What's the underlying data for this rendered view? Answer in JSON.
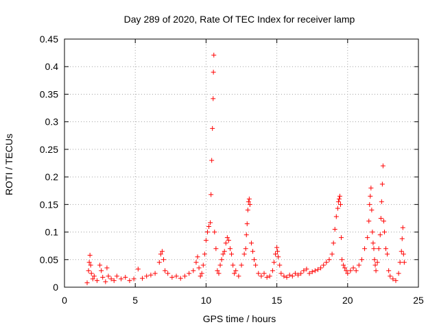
{
  "chart_data": {
    "type": "scatter",
    "title": "Day 289 of 2020, Rate Of TEC Index for receiver lamp",
    "xlabel": "GPS time / hours",
    "ylabel": "ROTI / TECUs",
    "xlim": [
      0,
      25
    ],
    "ylim": [
      0,
      0.45
    ],
    "xticks": [
      0,
      5,
      10,
      15,
      20,
      25
    ],
    "xtick_labels": [
      "0",
      "5",
      "10",
      "15",
      "20",
      "25"
    ],
    "yticks": [
      0,
      0.05,
      0.1,
      0.15,
      0.2,
      0.25,
      0.3,
      0.35,
      0.4,
      0.45
    ],
    "ytick_labels": [
      "0",
      "0.05",
      "0.1",
      "0.15",
      "0.2",
      "0.25",
      "0.3",
      "0.35",
      "0.4",
      "0.45"
    ],
    "grid": true,
    "marker": "+",
    "color": "#ff0000",
    "series": [
      {
        "name": "ROTI",
        "x": [
          1.6,
          1.7,
          1.75,
          1.8,
          1.85,
          1.9,
          2.0,
          2.1,
          2.3,
          2.5,
          2.6,
          2.7,
          2.9,
          3.0,
          3.1,
          3.3,
          3.5,
          3.7,
          4.0,
          4.3,
          4.6,
          4.9,
          5.2,
          5.5,
          5.8,
          6.1,
          6.4,
          6.7,
          6.8,
          6.9,
          7.0,
          7.1,
          7.3,
          7.6,
          7.9,
          8.2,
          8.5,
          8.8,
          9.1,
          9.3,
          9.4,
          9.5,
          9.6,
          9.7,
          9.8,
          9.9,
          10.0,
          10.1,
          10.2,
          10.3,
          10.35,
          10.4,
          10.45,
          10.5,
          10.52,
          10.55,
          10.6,
          10.7,
          10.8,
          10.9,
          11.0,
          11.1,
          11.2,
          11.3,
          11.4,
          11.5,
          11.6,
          11.7,
          11.8,
          11.9,
          12.0,
          12.1,
          12.3,
          12.5,
          12.7,
          12.8,
          12.85,
          12.9,
          12.95,
          13.0,
          13.05,
          13.1,
          13.2,
          13.3,
          13.4,
          13.5,
          13.7,
          13.9,
          14.1,
          14.3,
          14.5,
          14.7,
          14.8,
          14.9,
          15.0,
          15.05,
          15.1,
          15.2,
          15.3,
          15.5,
          15.7,
          15.9,
          16.1,
          16.3,
          16.5,
          16.7,
          16.9,
          17.1,
          17.3,
          17.5,
          17.7,
          17.9,
          18.1,
          18.3,
          18.5,
          18.7,
          18.9,
          19.0,
          19.1,
          19.2,
          19.3,
          19.35,
          19.4,
          19.45,
          19.5,
          19.55,
          19.6,
          19.7,
          19.8,
          19.9,
          20.0,
          20.2,
          20.4,
          20.6,
          20.8,
          21.0,
          21.2,
          21.4,
          21.5,
          21.55,
          21.6,
          21.65,
          21.7,
          21.75,
          21.8,
          21.85,
          21.9,
          21.95,
          22.0,
          22.1,
          22.2,
          22.3,
          22.35,
          22.4,
          22.45,
          22.5,
          22.55,
          22.6,
          22.7,
          22.8,
          22.9,
          23.0,
          23.2,
          23.4,
          23.6,
          23.7,
          23.8,
          23.85,
          23.9,
          23.95,
          24.0
        ],
        "y": [
          0.008,
          0.03,
          0.045,
          0.058,
          0.04,
          0.025,
          0.015,
          0.02,
          0.012,
          0.04,
          0.03,
          0.018,
          0.01,
          0.035,
          0.02,
          0.015,
          0.012,
          0.02,
          0.015,
          0.018,
          0.012,
          0.015,
          0.033,
          0.016,
          0.02,
          0.022,
          0.025,
          0.045,
          0.06,
          0.065,
          0.05,
          0.03,
          0.025,
          0.018,
          0.02,
          0.016,
          0.02,
          0.025,
          0.03,
          0.045,
          0.055,
          0.035,
          0.02,
          0.025,
          0.04,
          0.06,
          0.085,
          0.1,
          0.11,
          0.117,
          0.168,
          0.23,
          0.288,
          0.342,
          0.39,
          0.421,
          0.1,
          0.07,
          0.03,
          0.025,
          0.04,
          0.05,
          0.06,
          0.065,
          0.08,
          0.09,
          0.085,
          0.07,
          0.06,
          0.04,
          0.025,
          0.03,
          0.02,
          0.04,
          0.06,
          0.07,
          0.095,
          0.115,
          0.14,
          0.155,
          0.16,
          0.15,
          0.08,
          0.065,
          0.05,
          0.04,
          0.025,
          0.02,
          0.025,
          0.018,
          0.02,
          0.03,
          0.045,
          0.06,
          0.072,
          0.065,
          0.055,
          0.04,
          0.025,
          0.02,
          0.018,
          0.022,
          0.02,
          0.025,
          0.022,
          0.025,
          0.03,
          0.033,
          0.025,
          0.028,
          0.03,
          0.032,
          0.035,
          0.04,
          0.045,
          0.05,
          0.06,
          0.08,
          0.105,
          0.128,
          0.143,
          0.155,
          0.16,
          0.165,
          0.15,
          0.09,
          0.05,
          0.04,
          0.035,
          0.03,
          0.025,
          0.03,
          0.035,
          0.03,
          0.04,
          0.05,
          0.07,
          0.09,
          0.12,
          0.15,
          0.165,
          0.18,
          0.14,
          0.1,
          0.08,
          0.07,
          0.05,
          0.04,
          0.03,
          0.045,
          0.07,
          0.095,
          0.125,
          0.155,
          0.187,
          0.22,
          0.12,
          0.1,
          0.07,
          0.06,
          0.03,
          0.02,
          0.015,
          0.012,
          0.025,
          0.045,
          0.065,
          0.088,
          0.108,
          0.06,
          0.045
        ]
      }
    ]
  }
}
